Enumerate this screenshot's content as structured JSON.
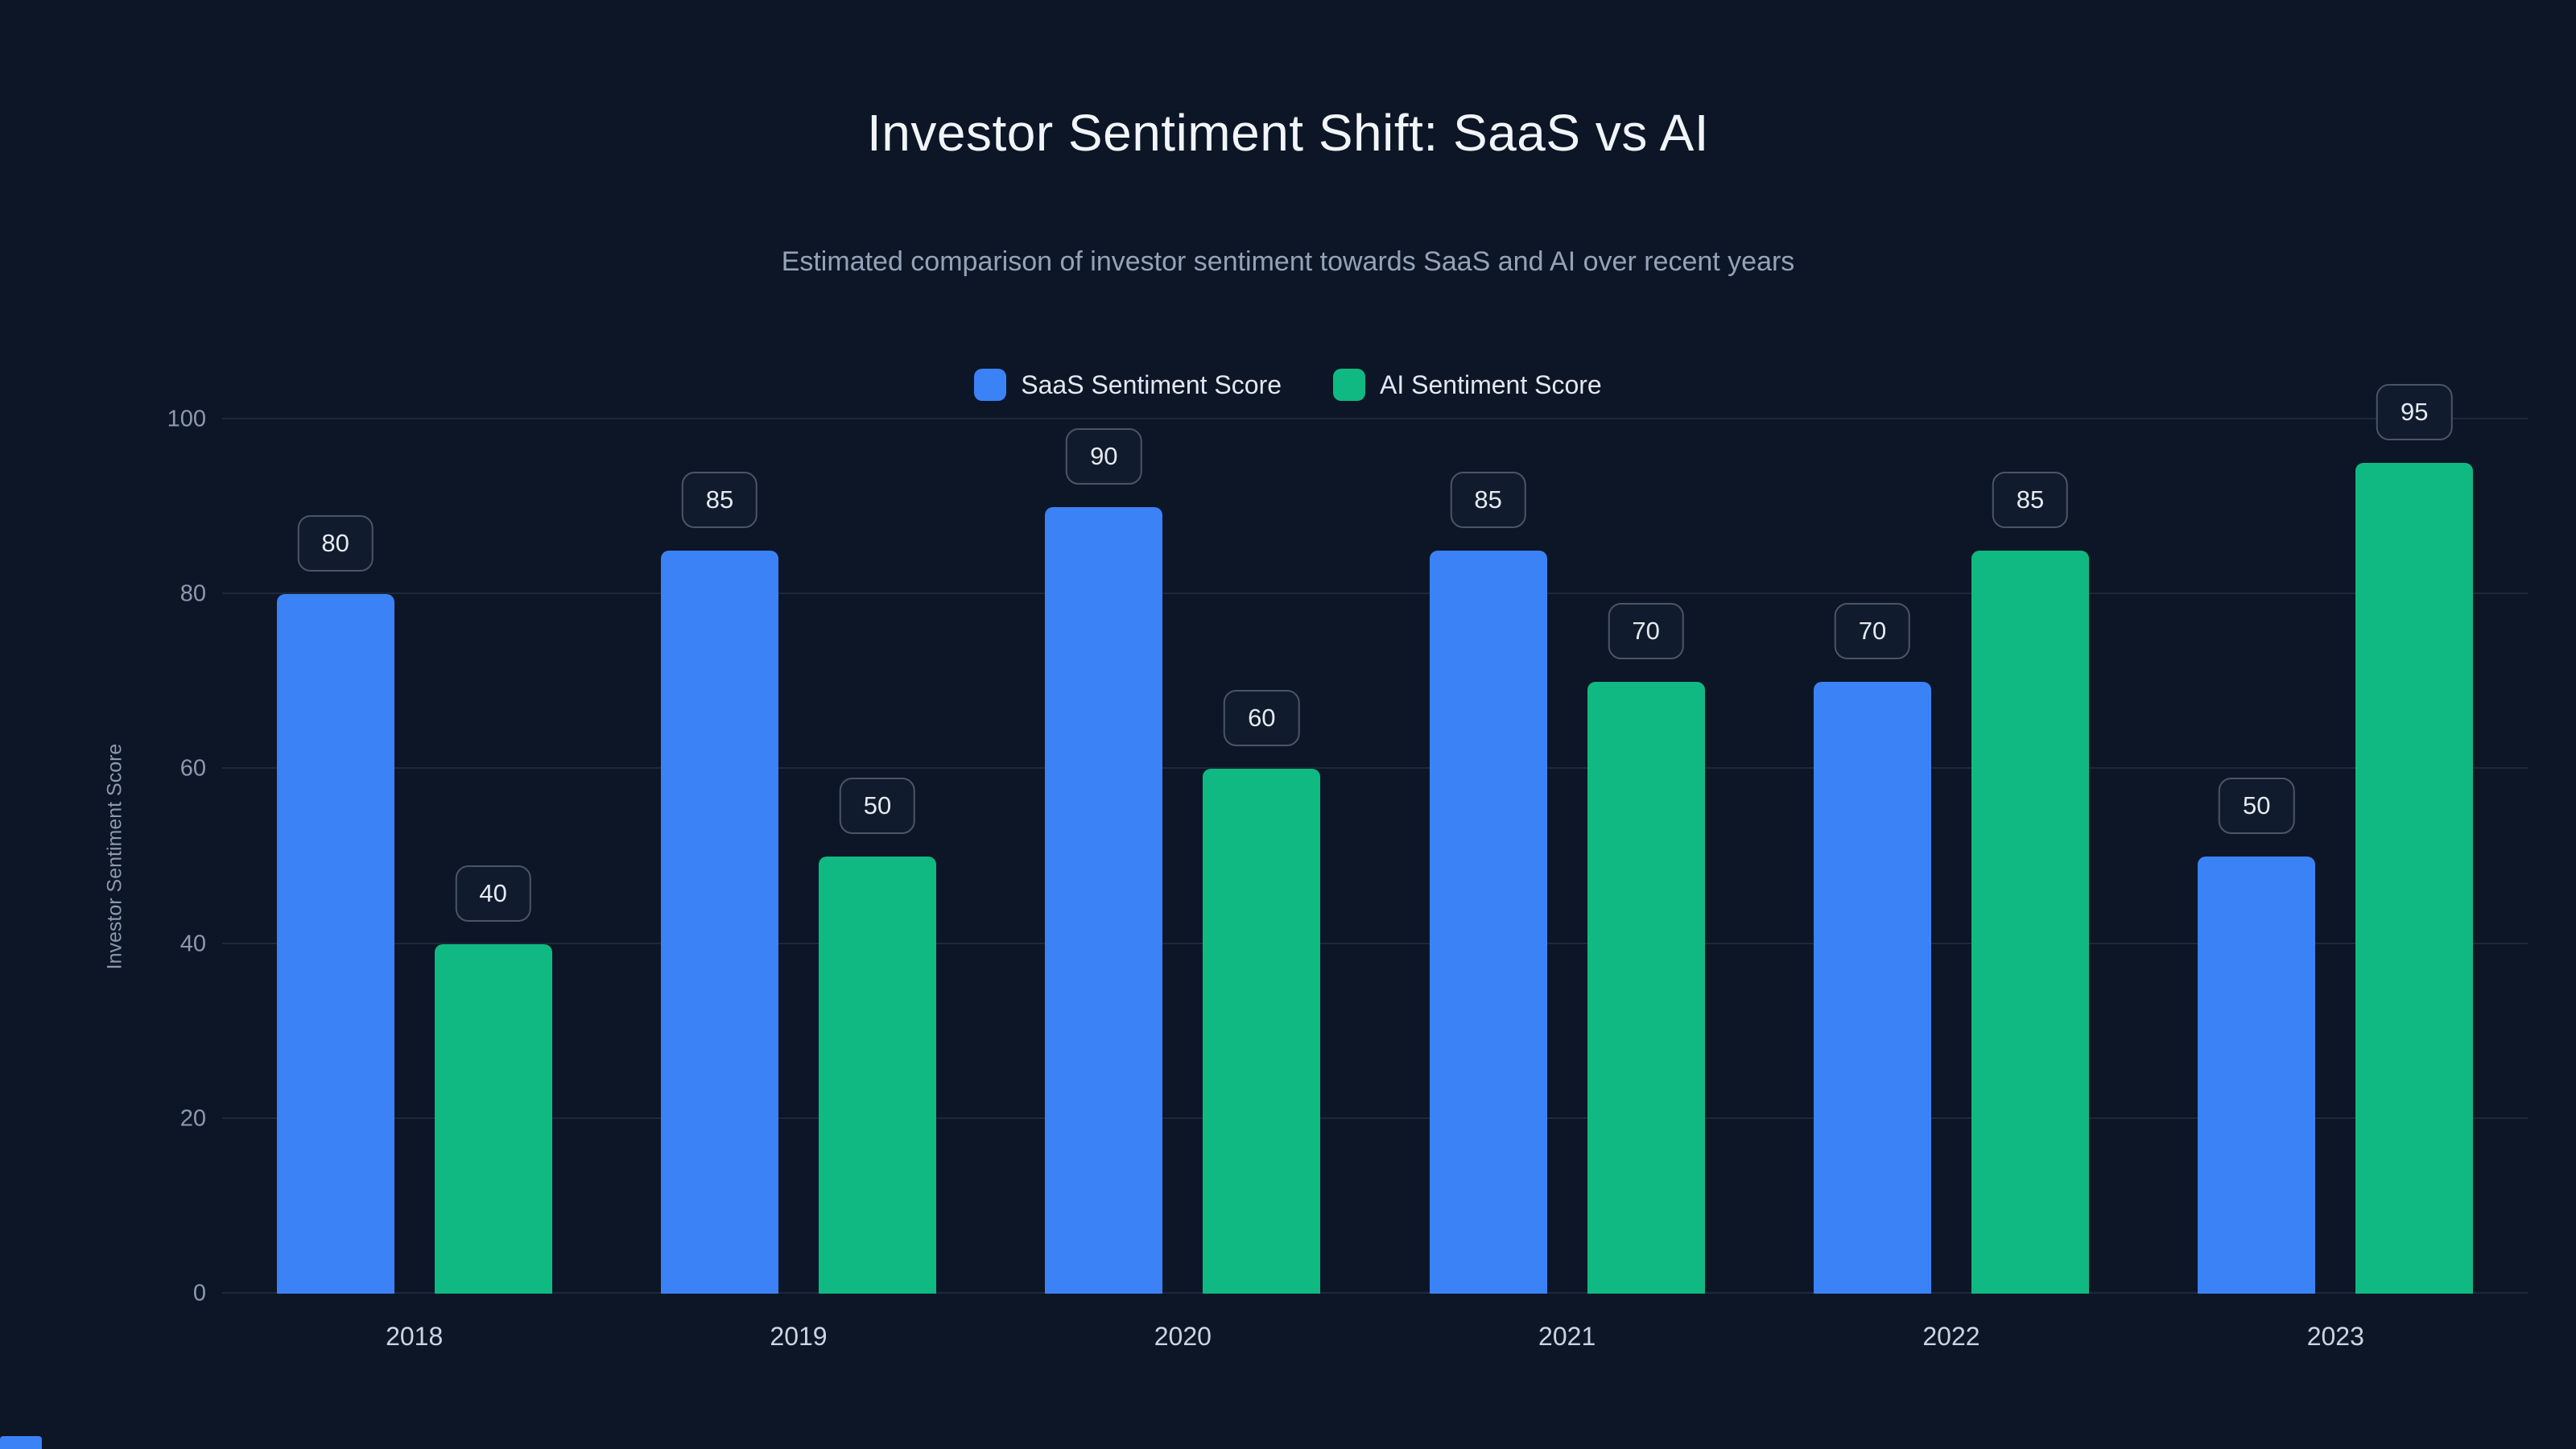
{
  "header": {
    "title": "Investor Sentiment Shift: SaaS vs AI",
    "subtitle": "Estimated comparison of investor sentiment towards SaaS and AI over recent years"
  },
  "chart_data": {
    "type": "bar",
    "title": "Investor Sentiment Shift: SaaS vs AI",
    "subtitle": "Estimated comparison of investor sentiment towards SaaS and AI over recent years",
    "categories": [
      "2018",
      "2019",
      "2020",
      "2021",
      "2022",
      "2023"
    ],
    "series": [
      {
        "name": "SaaS Sentiment Score",
        "color": "#3b82f6",
        "values": [
          80,
          85,
          90,
          85,
          70,
          50
        ]
      },
      {
        "name": "AI Sentiment Score",
        "color": "#10b981",
        "values": [
          40,
          50,
          60,
          70,
          85,
          95
        ]
      }
    ],
    "xlabel": "",
    "ylabel": "Investor Sentiment Score",
    "ylim": [
      0,
      100
    ],
    "ytick_step": 20,
    "yticks": [
      0,
      20,
      40,
      60,
      80,
      100
    ],
    "grid": true,
    "legend_position": "top",
    "value_labels_shown": true
  },
  "colors": {
    "background": "#0d1626",
    "grid": "#1d2839",
    "tick_text": "#8b9aae",
    "axis_text": "#cbd5e1",
    "title_text": "#f1f5f9",
    "subtitle_text": "#94a3b8",
    "legend_text": "#e2e8f0",
    "badge_bg": "#101b2d",
    "badge_border": "#4b5563",
    "badge_text": "#e5eaf0",
    "saas_color": "#3b82f6",
    "ai_color": "#10b981"
  }
}
